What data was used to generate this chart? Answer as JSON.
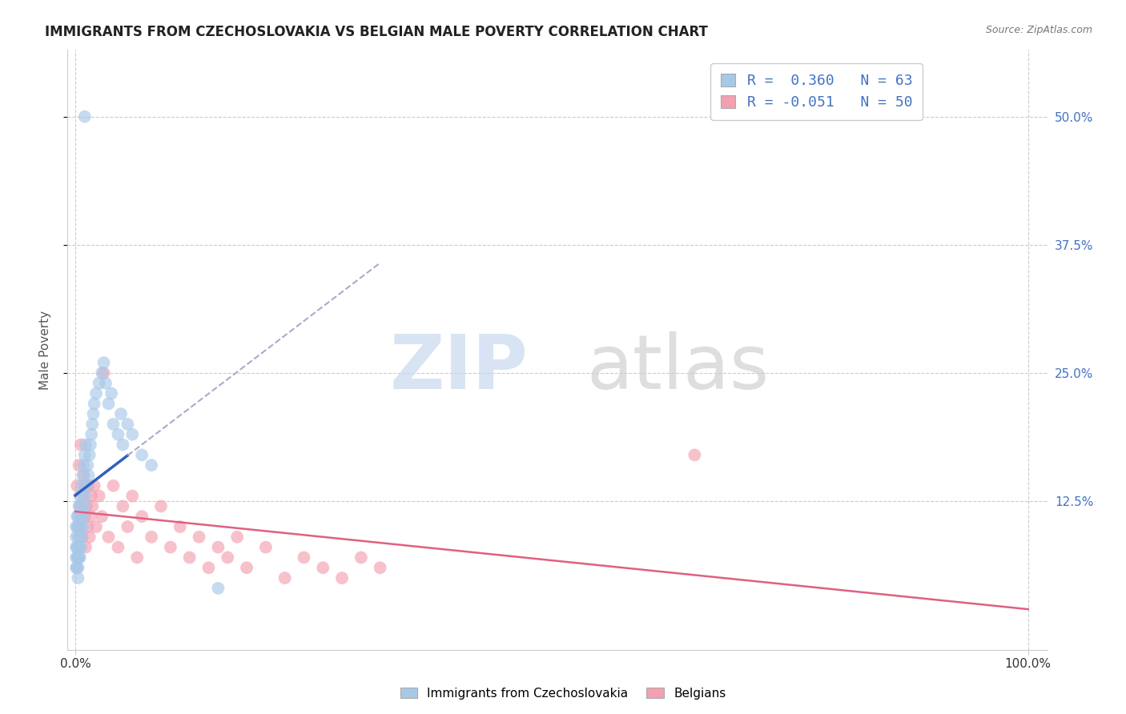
{
  "title": "IMMIGRANTS FROM CZECHOSLOVAKIA VS BELGIAN MALE POVERTY CORRELATION CHART",
  "source": "Source: ZipAtlas.com",
  "ylabel": "Male Poverty",
  "color_blue": "#a8c8e8",
  "color_pink": "#f4a0b0",
  "line_blue": "#3060c0",
  "line_pink": "#e06080",
  "ytick_values": [
    0.125,
    0.25,
    0.375,
    0.5
  ],
  "ytick_labels": [
    "12.5%",
    "25.0%",
    "37.5%",
    "50.0%"
  ],
  "legend_r1": "R =  0.360   N = 63",
  "legend_r2": "R = -0.051   N = 50",
  "blue_scatter_x": [
    0.001,
    0.001,
    0.001,
    0.001,
    0.001,
    0.002,
    0.002,
    0.002,
    0.002,
    0.002,
    0.003,
    0.003,
    0.003,
    0.003,
    0.003,
    0.003,
    0.004,
    0.004,
    0.004,
    0.004,
    0.005,
    0.005,
    0.005,
    0.005,
    0.006,
    0.006,
    0.006,
    0.007,
    0.007,
    0.008,
    0.008,
    0.009,
    0.009,
    0.01,
    0.01,
    0.011,
    0.011,
    0.012,
    0.013,
    0.014,
    0.015,
    0.016,
    0.017,
    0.018,
    0.019,
    0.02,
    0.022,
    0.025,
    0.028,
    0.03,
    0.032,
    0.035,
    0.038,
    0.04,
    0.045,
    0.048,
    0.05,
    0.055,
    0.06,
    0.07,
    0.08,
    0.15,
    0.01
  ],
  "blue_scatter_y": [
    0.06,
    0.07,
    0.08,
    0.09,
    0.1,
    0.06,
    0.07,
    0.08,
    0.1,
    0.11,
    0.05,
    0.06,
    0.07,
    0.08,
    0.09,
    0.11,
    0.07,
    0.08,
    0.1,
    0.12,
    0.07,
    0.09,
    0.11,
    0.13,
    0.08,
    0.1,
    0.12,
    0.09,
    0.14,
    0.1,
    0.15,
    0.11,
    0.16,
    0.12,
    0.17,
    0.13,
    0.18,
    0.14,
    0.16,
    0.15,
    0.17,
    0.18,
    0.19,
    0.2,
    0.21,
    0.22,
    0.23,
    0.24,
    0.25,
    0.26,
    0.24,
    0.22,
    0.23,
    0.2,
    0.19,
    0.21,
    0.18,
    0.2,
    0.19,
    0.17,
    0.16,
    0.04,
    0.5
  ],
  "pink_scatter_x": [
    0.002,
    0.003,
    0.004,
    0.005,
    0.006,
    0.007,
    0.008,
    0.009,
    0.01,
    0.01,
    0.011,
    0.012,
    0.013,
    0.014,
    0.015,
    0.016,
    0.017,
    0.018,
    0.02,
    0.022,
    0.025,
    0.028,
    0.03,
    0.035,
    0.04,
    0.045,
    0.05,
    0.055,
    0.06,
    0.065,
    0.07,
    0.08,
    0.09,
    0.1,
    0.11,
    0.12,
    0.13,
    0.14,
    0.15,
    0.16,
    0.17,
    0.18,
    0.2,
    0.22,
    0.24,
    0.26,
    0.28,
    0.3,
    0.32,
    0.65
  ],
  "pink_scatter_y": [
    0.14,
    0.1,
    0.16,
    0.12,
    0.18,
    0.09,
    0.13,
    0.15,
    0.11,
    0.14,
    0.08,
    0.12,
    0.1,
    0.14,
    0.09,
    0.11,
    0.13,
    0.12,
    0.14,
    0.1,
    0.13,
    0.11,
    0.25,
    0.09,
    0.14,
    0.08,
    0.12,
    0.1,
    0.13,
    0.07,
    0.11,
    0.09,
    0.12,
    0.08,
    0.1,
    0.07,
    0.09,
    0.06,
    0.08,
    0.07,
    0.09,
    0.06,
    0.08,
    0.05,
    0.07,
    0.06,
    0.05,
    0.07,
    0.06,
    0.17
  ]
}
